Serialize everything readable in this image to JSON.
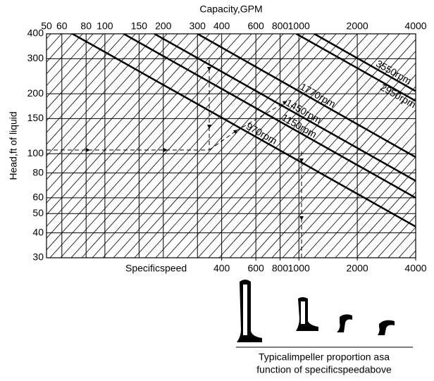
{
  "chart_data": {
    "type": "line",
    "x_label": "Capacity,GPM",
    "y_label": "Head,ft of liquid",
    "x2_label": "Specificspeed",
    "log_x": true,
    "log_y": true,
    "grid": true,
    "color": "#000000",
    "xlim": [
      50,
      4000
    ],
    "ylim": [
      30,
      400
    ],
    "xticks": [
      50,
      60,
      80,
      100,
      150,
      200,
      300,
      400,
      600,
      800,
      1000,
      2000,
      4000
    ],
    "yticks": [
      30,
      40,
      50,
      60,
      80,
      100,
      150,
      200,
      300,
      400
    ],
    "x2ticks": [
      400,
      600,
      800,
      1000,
      2000,
      4000
    ],
    "series": [
      {
        "name": "3550rpm",
        "color": "#000000",
        "x": [
          1200,
          4000
        ],
        "values": [
          400,
          206
        ]
      },
      {
        "name": "2950rpm",
        "color": "#000000",
        "x": [
          970,
          4000
        ],
        "values": [
          400,
          184
        ]
      },
      {
        "name": "1770rpm",
        "color": "#000000",
        "x": [
          300,
          4000
        ],
        "values": [
          400,
          96
        ]
      },
      {
        "name": "1450rpm",
        "color": "#000000",
        "x": [
          180,
          4000
        ],
        "values": [
          400,
          73
        ]
      },
      {
        "name": "1150rpm",
        "color": "#000000",
        "x": [
          125,
          4000
        ],
        "values": [
          400,
          60
        ]
      },
      {
        "name": "970rpm",
        "color": "#000000",
        "x": [
          68,
          4000
        ],
        "values": [
          400,
          43
        ]
      }
    ],
    "caption": [
      "Typicalimpeller proportion asa",
      "function of specificspeedabove"
    ]
  }
}
